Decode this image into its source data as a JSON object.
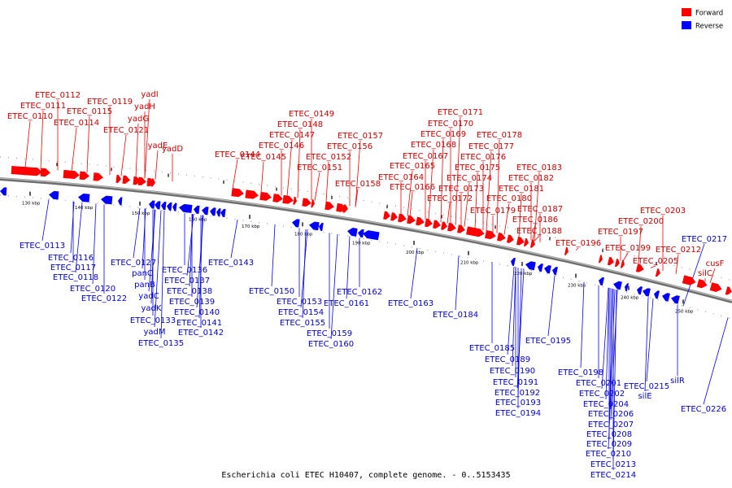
{
  "caption": "Escherichia coli ETEC H10407, complete genome. - 0..5153435",
  "legend": [
    {
      "label": "Forward",
      "color": "#ff0000"
    },
    {
      "label": "Reverse",
      "color": "#0000ff"
    }
  ],
  "colors": {
    "forward": "#ff0000",
    "reverse": "#0000ff",
    "backbone": "#8c8c8c",
    "label_forward": "#cc0000",
    "label_reverse": "#0000cc"
  },
  "scale_labels": [
    "130 kbp",
    "140 kbp",
    "150 kbp",
    "160 kbp",
    "170 kbp",
    "180 kbp",
    "190 kbp",
    "200 kbp",
    "210 kbp",
    "220 kbp",
    "230 kbp",
    "240 kbp",
    "250 kbp"
  ],
  "forward_genes": [
    "ETEC_0110",
    "ETEC_0111",
    "ETEC_0112",
    "ETEC_0114",
    "ETEC_0115",
    "ETEC_0119",
    "ETEC_0121",
    "yadG",
    "yadH",
    "yadI",
    "yadE",
    "yadD",
    "ETEC_0144",
    "ETEC_0145",
    "ETEC_0146",
    "ETEC_0147",
    "ETEC_0148",
    "ETEC_0149",
    "ETEC_0151",
    "ETEC_0152",
    "ETEC_0156",
    "ETEC_0157",
    "ETEC_0158",
    "ETEC_0164",
    "ETEC_0165",
    "ETEC_0166",
    "ETEC_0167",
    "ETEC_0168",
    "ETEC_0169",
    "ETEC_0170",
    "ETEC_0171",
    "ETEC_0172",
    "ETEC_0173",
    "ETEC_0174",
    "ETEC_0175",
    "ETEC_0176",
    "ETEC_0177",
    "ETEC_0178",
    "ETEC_0179",
    "ETEC_0180",
    "ETEC_0181",
    "ETEC_0182",
    "ETEC_0183",
    "ETEC_0186",
    "ETEC_0187",
    "ETEC_0188",
    "ETEC_0196",
    "ETEC_0197",
    "ETEC_0199",
    "ETEC_0200",
    "ETEC_0203",
    "ETEC_0205",
    "ETEC_0212",
    "silC",
    "cusF"
  ],
  "reverse_genes": [
    "ETEC_0113",
    "ETEC_0116",
    "ETEC_0117",
    "ETEC_0118",
    "ETEC_0120",
    "ETEC_0122",
    "ETEC_0127",
    "panC",
    "panB",
    "yadC",
    "yadK",
    "ETEC_0133",
    "yadM",
    "ETEC_0135",
    "ETEC_0136",
    "ETEC_0137",
    "ETEC_0138",
    "ETEC_0139",
    "ETEC_0140",
    "ETEC_0141",
    "ETEC_0142",
    "ETEC_0143",
    "ETEC_0150",
    "ETEC_0153",
    "ETEC_0154",
    "ETEC_0155",
    "ETEC_0159",
    "ETEC_0160",
    "ETEC_0161",
    "ETEC_0162",
    "ETEC_0163",
    "ETEC_0184",
    "ETEC_0185",
    "ETEC_0189",
    "ETEC_0190",
    "ETEC_0191",
    "ETEC_0192",
    "ETEC_0193",
    "ETEC_0194",
    "ETEC_0195",
    "ETEC_0198",
    "ETEC_0201",
    "ETEC_0202",
    "ETEC_0204",
    "ETEC_0206",
    "ETEC_0207",
    "ETEC_0208",
    "ETEC_0209",
    "ETEC_0210",
    "ETEC_0213",
    "ETEC_0214",
    "ETEC_0215",
    "silE",
    "silR",
    "ETEC_0217",
    "ETEC_0226"
  ]
}
